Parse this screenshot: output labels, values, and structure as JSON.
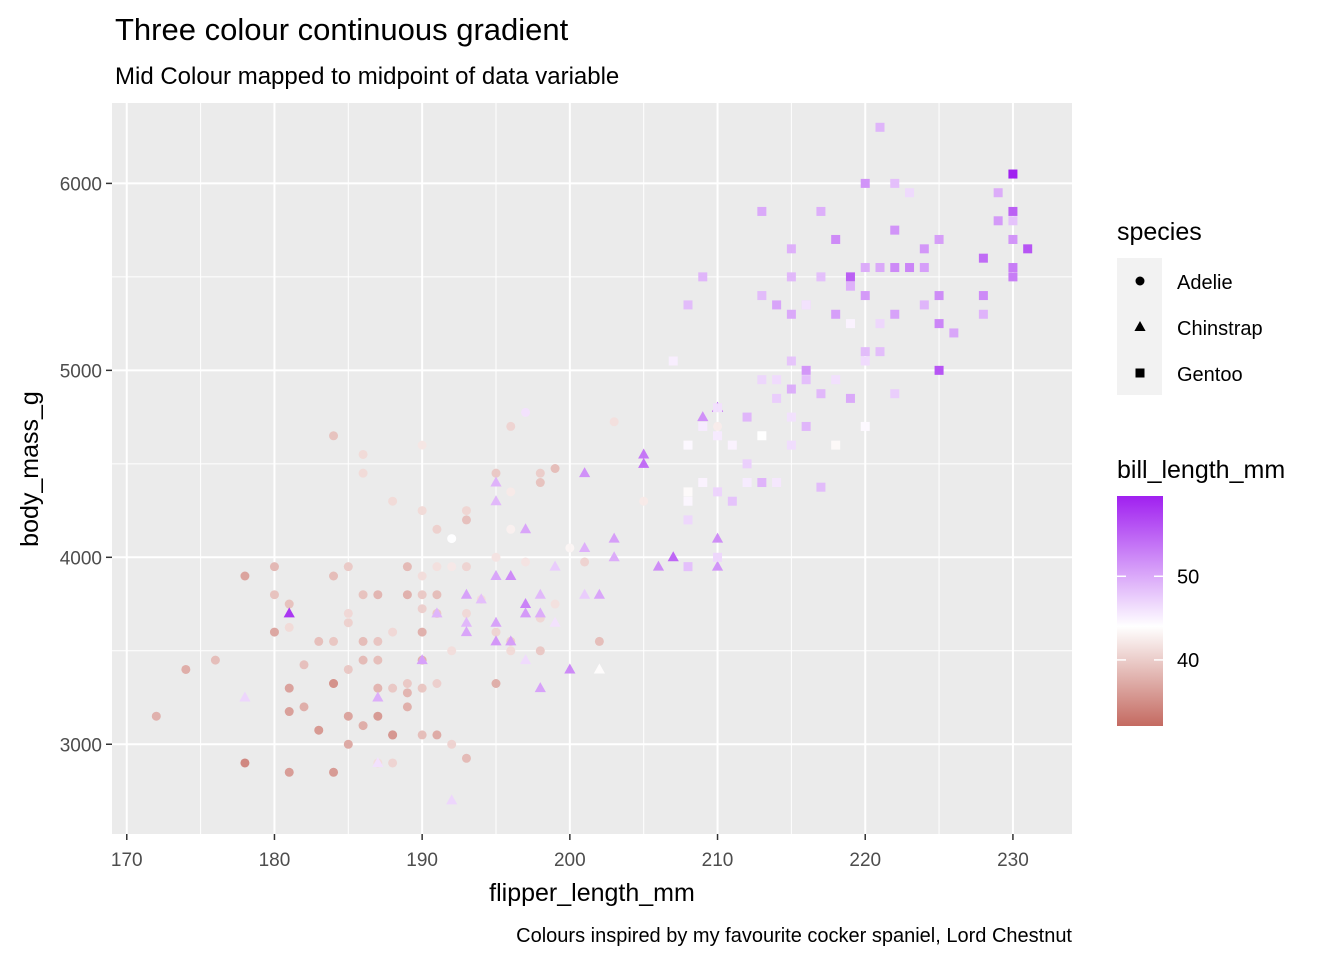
{
  "chart_data": {
    "type": "scatter",
    "title": "Three colour continuous gradient",
    "subtitle": "Mid Colour mapped to midpoint of data variable",
    "xlabel": "flipper_length_mm",
    "ylabel": "body_mass_g",
    "caption": "Colours inspired by my favourite cocker spaniel, Lord Chestnut",
    "xlim": [
      169,
      234
    ],
    "ylim": [
      2520,
      6430
    ],
    "x_ticks": [
      170,
      180,
      190,
      200,
      210,
      220,
      230
    ],
    "y_ticks": [
      3000,
      4000,
      5000,
      6000
    ],
    "grid": true,
    "legend_position": "right",
    "shape_legend": {
      "title": "species",
      "entries": [
        {
          "label": "Adelie",
          "shape": "circle"
        },
        {
          "label": "Chinstrap",
          "shape": "triangle"
        },
        {
          "label": "Gentoo",
          "shape": "square"
        }
      ]
    },
    "color_legend": {
      "title": "bill_length_mm",
      "ticks": [
        40,
        50
      ],
      "range": [
        32.1,
        59.6
      ],
      "midpoint": 44,
      "low_color": "#c46a61",
      "mid_color": "#ffffff",
      "high_color": "#a020f0"
    },
    "series": [
      {
        "name": "Adelie",
        "shape": "circle",
        "points": [
          [
            172,
            3150,
            37.8
          ],
          [
            174,
            3400,
            37.5
          ],
          [
            176,
            3450,
            38.8
          ],
          [
            178,
            3900,
            36.7
          ],
          [
            178,
            2900,
            34.5
          ],
          [
            180,
            3950,
            38.4
          ],
          [
            180,
            3800,
            39.2
          ],
          [
            180,
            3600,
            37.0
          ],
          [
            181,
            3750,
            39.1
          ],
          [
            181,
            3625,
            41.1
          ],
          [
            181,
            3300,
            36.6
          ],
          [
            181,
            3175,
            36.4
          ],
          [
            181,
            2850,
            36.2
          ],
          [
            182,
            3425,
            39.0
          ],
          [
            182,
            3200,
            37.6
          ],
          [
            183,
            3075,
            35.9
          ],
          [
            183,
            3550,
            38.9
          ],
          [
            184,
            4650,
            39.2
          ],
          [
            184,
            3900,
            38.7
          ],
          [
            184,
            3550,
            39.5
          ],
          [
            184,
            3325,
            38.1
          ],
          [
            184,
            3325,
            35.3
          ],
          [
            184,
            2850,
            36.0
          ],
          [
            185,
            3950,
            39.8
          ],
          [
            185,
            3700,
            40.9
          ],
          [
            185,
            3650,
            40.3
          ],
          [
            185,
            3400,
            39.6
          ],
          [
            185,
            3150,
            36.8
          ],
          [
            185,
            3000,
            37.2
          ],
          [
            186,
            4450,
            41.1
          ],
          [
            186,
            3800,
            39.2
          ],
          [
            186,
            3550,
            38.7
          ],
          [
            186,
            3450,
            38.6
          ],
          [
            186,
            3100,
            37.5
          ],
          [
            187,
            3800,
            38.2
          ],
          [
            187,
            3550,
            39.4
          ],
          [
            187,
            3450,
            38.9
          ],
          [
            187,
            3300,
            38.1
          ],
          [
            187,
            3150,
            36.0
          ],
          [
            187,
            2900,
            41.4
          ],
          [
            188,
            3600,
            40.9
          ],
          [
            188,
            3300,
            39.6
          ],
          [
            188,
            3050,
            36.3
          ],
          [
            188,
            2900,
            40.6
          ],
          [
            188,
            4300,
            41.1
          ],
          [
            188,
            3050,
            35.7
          ],
          [
            189,
            3950,
            38.5
          ],
          [
            189,
            3800,
            37.8
          ],
          [
            189,
            3275,
            38.1
          ],
          [
            189,
            3325,
            39.7
          ],
          [
            189,
            3200,
            37.7
          ],
          [
            190,
            4250,
            41.1
          ],
          [
            190,
            4600,
            42.0
          ],
          [
            190,
            3900,
            41.3
          ],
          [
            190,
            3800,
            39.7
          ],
          [
            190,
            3450,
            37.9
          ],
          [
            190,
            3050,
            38.8
          ],
          [
            190,
            3300,
            39.5
          ],
          [
            190,
            3725,
            40.2
          ],
          [
            191,
            3950,
            41.5
          ],
          [
            191,
            3800,
            38.8
          ],
          [
            191,
            3700,
            39.7
          ],
          [
            191,
            3325,
            40.2
          ],
          [
            191,
            3050,
            37.3
          ],
          [
            192,
            4100,
            44.1
          ],
          [
            192,
            3000,
            40.5
          ],
          [
            192,
            3950,
            42.2
          ],
          [
            193,
            4250,
            40.7
          ],
          [
            193,
            4200,
            39.0
          ],
          [
            193,
            3700,
            41.0
          ],
          [
            193,
            2925,
            38.6
          ],
          [
            194,
            3775,
            41.3
          ],
          [
            195,
            3600,
            40.6
          ],
          [
            195,
            3325,
            37.6
          ],
          [
            195,
            4000,
            41.8
          ],
          [
            196,
            4700,
            40.6
          ],
          [
            196,
            4150,
            42.8
          ],
          [
            196,
            3550,
            40.1
          ],
          [
            196,
            3500,
            41.1
          ],
          [
            197,
            4775,
            46.0
          ],
          [
            197,
            3975,
            41.8
          ],
          [
            198,
            4400,
            39.2
          ],
          [
            198,
            3500,
            39.6
          ],
          [
            198,
            3675,
            40.8
          ],
          [
            199,
            4475,
            38.8
          ],
          [
            199,
            3750,
            41.6
          ],
          [
            200,
            4050,
            43.2
          ],
          [
            201,
            3975,
            40.5
          ],
          [
            202,
            3550,
            38.8
          ],
          [
            203,
            4725,
            41.5
          ],
          [
            205,
            4300,
            42.3
          ],
          [
            210,
            4700,
            42.5
          ],
          [
            193,
            3950,
            40.6
          ],
          [
            186,
            4550,
            41.1
          ],
          [
            195,
            4450,
            39.7
          ],
          [
            198,
            4450,
            40.0
          ],
          [
            196,
            4350,
            42.3
          ],
          [
            192,
            3500,
            41.4
          ],
          [
            190,
            3600,
            37.8
          ],
          [
            191,
            4150,
            40.3
          ]
        ]
      },
      {
        "name": "Chinstrap",
        "shape": "triangle",
        "points": [
          [
            178,
            3250,
            46.9
          ],
          [
            181,
            3700,
            58.0
          ],
          [
            187,
            3250,
            49.7
          ],
          [
            187,
            2900,
            46.1
          ],
          [
            190,
            3450,
            50.6
          ],
          [
            191,
            3700,
            49.2
          ],
          [
            192,
            2700,
            46.9
          ],
          [
            193,
            3800,
            50.5
          ],
          [
            193,
            3650,
            49.0
          ],
          [
            193,
            3600,
            50.3
          ],
          [
            194,
            3775,
            48.5
          ],
          [
            195,
            4400,
            49.3
          ],
          [
            195,
            3900,
            50.2
          ],
          [
            195,
            3650,
            50.5
          ],
          [
            195,
            3550,
            51.3
          ],
          [
            196,
            3900,
            52.1
          ],
          [
            196,
            3550,
            50.8
          ],
          [
            197,
            3750,
            52.7
          ],
          [
            197,
            3700,
            51.1
          ],
          [
            197,
            3450,
            46.5
          ],
          [
            197,
            4150,
            50.3
          ],
          [
            198,
            3800,
            48.9
          ],
          [
            198,
            3300,
            50.5
          ],
          [
            198,
            3700,
            49.8
          ],
          [
            199,
            3650,
            46.0
          ],
          [
            199,
            3950,
            47.6
          ],
          [
            200,
            3400,
            52.2
          ],
          [
            201,
            4450,
            51.7
          ],
          [
            201,
            4050,
            49.5
          ],
          [
            201,
            3800,
            47.5
          ],
          [
            202,
            3400,
            43.8
          ],
          [
            202,
            3800,
            50.3
          ],
          [
            203,
            4100,
            50.8
          ],
          [
            203,
            4000,
            49.8
          ],
          [
            205,
            4550,
            53.5
          ],
          [
            205,
            4500,
            54.2
          ],
          [
            206,
            3950,
            52.0
          ],
          [
            207,
            4000,
            54.6
          ],
          [
            210,
            4800,
            55.8
          ],
          [
            210,
            4100,
            51.9
          ],
          [
            210,
            3950,
            51.5
          ],
          [
            209,
            4750,
            51.7
          ],
          [
            195,
            4300,
            49.0
          ]
        ]
      },
      {
        "name": "Gentoo",
        "shape": "square",
        "points": [
          [
            207,
            5050,
            45.2
          ],
          [
            208,
            5350,
            48.7
          ],
          [
            208,
            4600,
            44.5
          ],
          [
            208,
            4350,
            43.6
          ],
          [
            208,
            4200,
            46.8
          ],
          [
            208,
            3950,
            48.4
          ],
          [
            209,
            5500,
            49.1
          ],
          [
            209,
            4700,
            45.4
          ],
          [
            209,
            4400,
            44.9
          ],
          [
            210,
            4800,
            46.2
          ],
          [
            210,
            4650,
            45.5
          ],
          [
            210,
            4350,
            47.0
          ],
          [
            210,
            4000,
            46.8
          ],
          [
            211,
            4600,
            44.9
          ],
          [
            211,
            4300,
            48.2
          ],
          [
            212,
            4750,
            49.1
          ],
          [
            212,
            4500,
            47.3
          ],
          [
            212,
            4400,
            45.4
          ],
          [
            213,
            5850,
            50.0
          ],
          [
            213,
            5400,
            48.7
          ],
          [
            213,
            4950,
            46.9
          ],
          [
            213,
            4650,
            44.0
          ],
          [
            213,
            4400,
            49.3
          ],
          [
            214,
            5350,
            50.4
          ],
          [
            214,
            4950,
            46.5
          ],
          [
            214,
            4850,
            47.5
          ],
          [
            214,
            4400,
            45.7
          ],
          [
            215,
            5650,
            49.5
          ],
          [
            215,
            5300,
            50.0
          ],
          [
            215,
            5050,
            48.1
          ],
          [
            215,
            4900,
            49.7
          ],
          [
            215,
            4750,
            46.1
          ],
          [
            215,
            4600,
            46.4
          ],
          [
            215,
            5500,
            49.0
          ],
          [
            216,
            5000,
            51.3
          ],
          [
            216,
            4950,
            48.5
          ],
          [
            216,
            5350,
            47.8
          ],
          [
            216,
            4700,
            49.1
          ],
          [
            217,
            5850,
            49.6
          ],
          [
            217,
            5500,
            48.4
          ],
          [
            217,
            4875,
            49.0
          ],
          [
            217,
            4375,
            48.7
          ],
          [
            218,
            5700,
            52.1
          ],
          [
            218,
            5300,
            50.7
          ],
          [
            218,
            4600,
            43.5
          ],
          [
            218,
            4950,
            46.2
          ],
          [
            219,
            5500,
            55.1
          ],
          [
            219,
            5450,
            49.5
          ],
          [
            219,
            5250,
            44.9
          ],
          [
            219,
            4850,
            50.0
          ],
          [
            220,
            6000,
            51.5
          ],
          [
            220,
            5550,
            49.8
          ],
          [
            220,
            5400,
            51.1
          ],
          [
            220,
            5100,
            48.7
          ],
          [
            220,
            4700,
            44.4
          ],
          [
            220,
            5050,
            46.5
          ],
          [
            221,
            6300,
            49.2
          ],
          [
            221,
            5550,
            50.0
          ],
          [
            221,
            5100,
            48.6
          ],
          [
            221,
            5250,
            46.8
          ],
          [
            222,
            6000,
            48.5
          ],
          [
            222,
            5750,
            51.5
          ],
          [
            222,
            5550,
            52.2
          ],
          [
            222,
            5300,
            50.5
          ],
          [
            222,
            4875,
            47.4
          ],
          [
            223,
            5950,
            46.6
          ],
          [
            223,
            5550,
            52.5
          ],
          [
            224,
            5550,
            50.7
          ],
          [
            224,
            5650,
            51.3
          ],
          [
            224,
            5350,
            49.2
          ],
          [
            225,
            5700,
            50.8
          ],
          [
            225,
            5400,
            52.0
          ],
          [
            225,
            5250,
            52.5
          ],
          [
            225,
            5000,
            55.9
          ],
          [
            226,
            5200,
            50.2
          ],
          [
            228,
            5600,
            54.3
          ],
          [
            228,
            5400,
            52.2
          ],
          [
            228,
            5300,
            49.3
          ],
          [
            229,
            5800,
            51.1
          ],
          [
            229,
            5950,
            49.8
          ],
          [
            230,
            6050,
            59.6
          ],
          [
            230,
            5850,
            55.1
          ],
          [
            230,
            5800,
            48.2
          ],
          [
            230,
            5700,
            51.4
          ],
          [
            230,
            5550,
            53.1
          ],
          [
            230,
            5500,
            53.0
          ],
          [
            231,
            5650,
            55.9
          ],
          [
            208,
            4300,
            44.6
          ],
          [
            216,
            5350,
            46.0
          ]
        ]
      }
    ]
  }
}
